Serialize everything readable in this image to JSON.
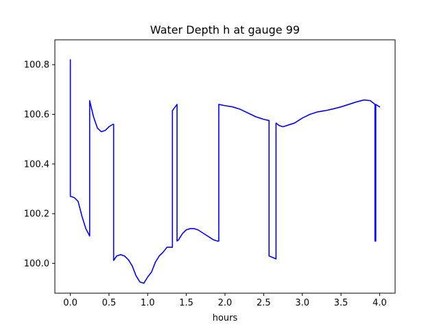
{
  "chart_data": {
    "type": "line",
    "title": "Water Depth h at gauge 99",
    "xlabel": "hours",
    "ylabel": "",
    "xlim": [
      -0.2,
      4.2
    ],
    "ylim": [
      99.88,
      100.9
    ],
    "xticks": [
      0.0,
      0.5,
      1.0,
      1.5,
      2.0,
      2.5,
      3.0,
      3.5,
      4.0
    ],
    "xtick_labels": [
      "0.0",
      "0.5",
      "1.0",
      "1.5",
      "2.0",
      "2.5",
      "3.0",
      "3.5",
      "4.0"
    ],
    "yticks": [
      100.0,
      100.2,
      100.4,
      100.6,
      100.8
    ],
    "ytick_labels": [
      "100.0",
      "100.2",
      "100.4",
      "100.6",
      "100.8"
    ],
    "grid": false,
    "series": [
      {
        "color": "#0000ff",
        "x": [
          0.0,
          0.0,
          0.05,
          0.1,
          0.15,
          0.2,
          0.25,
          0.25,
          0.3,
          0.35,
          0.4,
          0.45,
          0.5,
          0.55,
          0.56,
          0.56,
          0.6,
          0.65,
          0.7,
          0.75,
          0.8,
          0.85,
          0.9,
          0.95,
          1.0,
          1.05,
          1.1,
          1.15,
          1.2,
          1.25,
          1.32,
          1.32,
          1.38,
          1.38,
          1.4,
          1.45,
          1.5,
          1.55,
          1.6,
          1.65,
          1.7,
          1.75,
          1.8,
          1.85,
          1.9,
          1.92,
          1.92,
          2.0,
          2.1,
          2.2,
          2.3,
          2.4,
          2.5,
          2.57,
          2.57,
          2.66,
          2.66,
          2.7,
          2.75,
          2.8,
          2.9,
          3.0,
          3.1,
          3.2,
          3.3,
          3.4,
          3.5,
          3.6,
          3.7,
          3.8,
          3.88,
          3.94,
          3.94,
          3.95,
          3.95,
          4.0
        ],
        "y": [
          100.82,
          100.27,
          100.265,
          100.25,
          100.19,
          100.14,
          100.11,
          100.655,
          100.59,
          100.545,
          100.53,
          100.535,
          100.55,
          100.56,
          100.56,
          100.012,
          100.03,
          100.035,
          100.03,
          100.015,
          99.99,
          99.95,
          99.925,
          99.92,
          99.945,
          99.965,
          100.005,
          100.03,
          100.045,
          100.065,
          100.065,
          100.615,
          100.64,
          100.09,
          100.095,
          100.12,
          100.135,
          100.14,
          100.14,
          100.135,
          100.125,
          100.115,
          100.105,
          100.095,
          100.09,
          100.09,
          100.64,
          100.635,
          100.63,
          100.62,
          100.605,
          100.59,
          100.58,
          100.575,
          100.03,
          100.018,
          100.565,
          100.555,
          100.55,
          100.555,
          100.565,
          100.585,
          100.6,
          100.61,
          100.615,
          100.622,
          100.63,
          100.64,
          100.65,
          100.658,
          100.655,
          100.64,
          100.09,
          100.09,
          100.64,
          100.63
        ]
      }
    ]
  }
}
